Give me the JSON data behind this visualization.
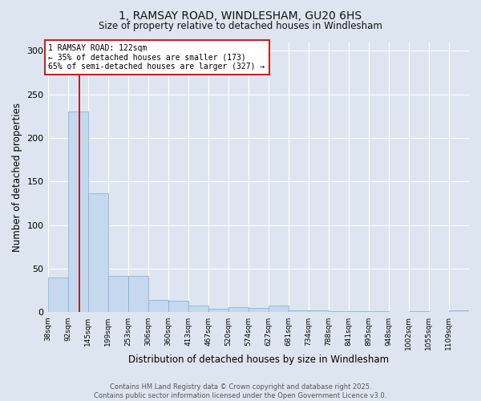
{
  "title_line1": "1, RAMSAY ROAD, WINDLESHAM, GU20 6HS",
  "title_line2": "Size of property relative to detached houses in Windlesham",
  "xlabel": "Distribution of detached houses by size in Windlesham",
  "ylabel": "Number of detached properties",
  "bin_labels": [
    "38sqm",
    "92sqm",
    "145sqm",
    "199sqm",
    "253sqm",
    "306sqm",
    "360sqm",
    "413sqm",
    "467sqm",
    "520sqm",
    "574sqm",
    "627sqm",
    "681sqm",
    "734sqm",
    "788sqm",
    "841sqm",
    "895sqm",
    "948sqm",
    "1002sqm",
    "1055sqm",
    "1109sqm"
  ],
  "bar_heights": [
    40,
    230,
    137,
    42,
    42,
    14,
    13,
    8,
    4,
    6,
    5,
    8,
    2,
    2,
    1,
    1,
    1,
    0,
    1,
    0,
    2
  ],
  "bar_color": "#c5d8ee",
  "bar_edge_color": "#7aadd4",
  "property_size": 122,
  "bin_edges": [
    38,
    92,
    145,
    199,
    253,
    306,
    360,
    413,
    467,
    520,
    574,
    627,
    681,
    734,
    788,
    841,
    895,
    948,
    1002,
    1055,
    1109,
    1163
  ],
  "vline_color": "#aa0000",
  "annotation_text": "1 RAMSAY ROAD: 122sqm\n← 35% of detached houses are smaller (173)\n65% of semi-detached houses are larger (327) →",
  "annotation_box_color": "#ffffff",
  "annotation_box_edge": "#cc2222",
  "ylim": [
    0,
    310
  ],
  "yticks": [
    0,
    50,
    100,
    150,
    200,
    250,
    300
  ],
  "footer_text": "Contains HM Land Registry data © Crown copyright and database right 2025.\nContains public sector information licensed under the Open Government Licence v3.0.",
  "background_color": "#dde6f0",
  "plot_bg_color": "#dde6f0",
  "grid_color": "#ffffff"
}
